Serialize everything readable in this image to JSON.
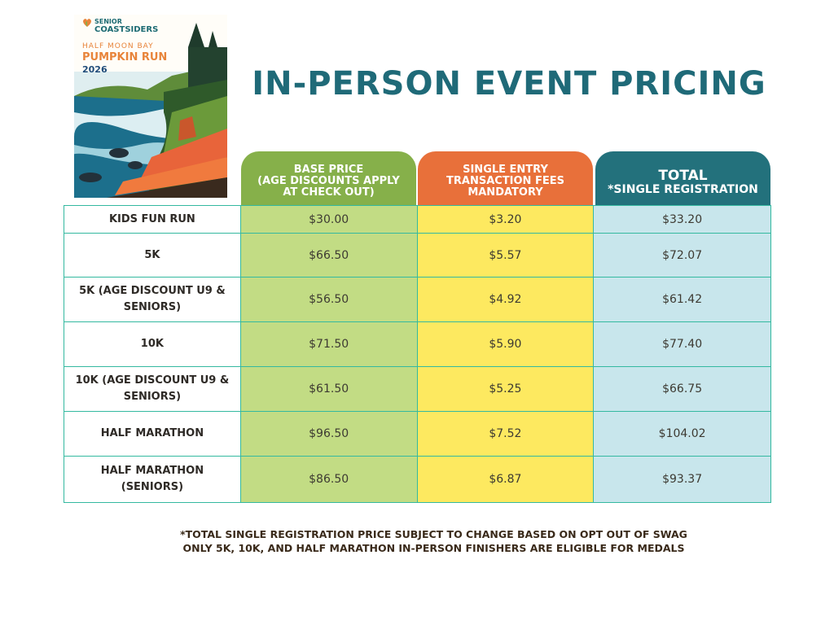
{
  "poster": {
    "brand_line1": "SENIOR",
    "brand_line2": "COASTSIDERS",
    "location": "HALF MOON BAY",
    "event": "PUMPKIN RUN",
    "year": "2026"
  },
  "title": "IN-PERSON EVENT PRICING",
  "headers": {
    "base": [
      "BASE PRICE",
      "(AGE DISCOUNTS APPLY",
      "AT CHECK OUT)"
    ],
    "fee": [
      "SINGLE ENTRY",
      "TRANSACTION FEES",
      "MANDATORY"
    ],
    "total": [
      "TOTAL",
      "*SINGLE REGISTRATION"
    ]
  },
  "rows": [
    {
      "label": "KIDS FUN RUN",
      "base": "$30.00",
      "fee": "$3.20",
      "total": "$33.20"
    },
    {
      "label": "5K",
      "base": "$66.50",
      "fee": "$5.57",
      "total": "$72.07"
    },
    {
      "label": "5K (AGE DISCOUNT U9 & SENIORS)",
      "base": "$56.50",
      "fee": "$4.92",
      "total": "$61.42"
    },
    {
      "label": "10K",
      "base": "$71.50",
      "fee": "$5.90",
      "total": "$77.40"
    },
    {
      "label": "10K (AGE DISCOUNT U9 & SENIORS)",
      "base": "$61.50",
      "fee": "$5.25",
      "total": "$66.75"
    },
    {
      "label": "HALF MARATHON",
      "base": "$96.50",
      "fee": "$7.52",
      "total": "$104.02"
    },
    {
      "label": "HALF MARATHON (SENIORS)",
      "base": "$86.50",
      "fee": "$6.87",
      "total": "$93.37"
    }
  ],
  "notes": [
    "*TOTAL SINGLE REGISTRATION PRICE SUBJECT TO CHANGE BASED ON OPT OUT OF SWAG",
    "ONLY 5K, 10K, AND HALF MARATHON IN-PERSON FINISHERS ARE ELIGIBLE FOR MEDALS"
  ],
  "colors": {
    "title": "#1f6a78",
    "base_header": "#86b04a",
    "fee_header": "#e8703a",
    "total_header": "#23717c",
    "base_cell": "#c2dc84",
    "fee_cell": "#fde960",
    "total_cell": "#c8e6ec",
    "grid_line": "#34b9a0"
  }
}
